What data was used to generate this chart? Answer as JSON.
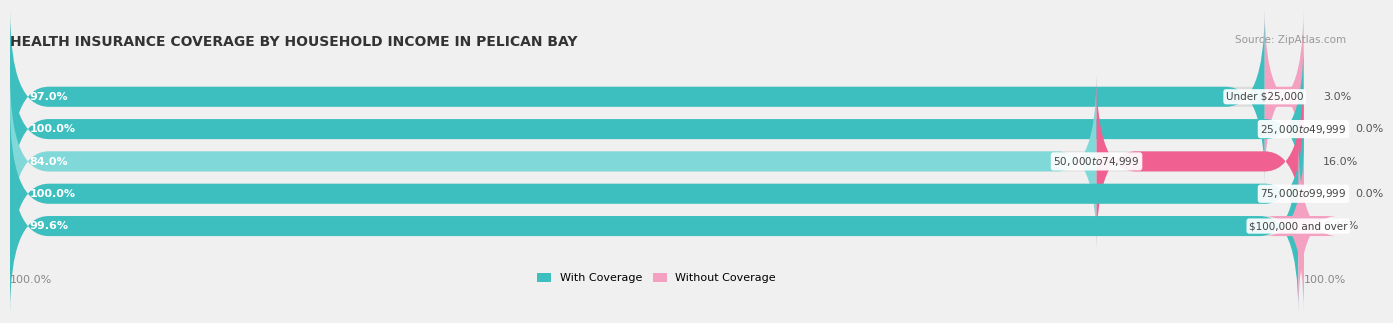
{
  "title": "HEALTH INSURANCE COVERAGE BY HOUSEHOLD INCOME IN PELICAN BAY",
  "source": "Source: ZipAtlas.com",
  "categories": [
    "Under $25,000",
    "$25,000 to $49,999",
    "$50,000 to $74,999",
    "$75,000 to $99,999",
    "$100,000 and over"
  ],
  "with_coverage": [
    97.0,
    100.0,
    84.0,
    100.0,
    99.6
  ],
  "without_coverage": [
    3.0,
    0.0,
    16.0,
    0.0,
    0.43
  ],
  "with_coverage_labels": [
    "97.0%",
    "100.0%",
    "84.0%",
    "100.0%",
    "99.6%"
  ],
  "without_coverage_labels": [
    "3.0%",
    "0.0%",
    "16.0%",
    "0.0%",
    "0.43%"
  ],
  "color_with": "#3dbfbf",
  "color_with_light": "#80d8d8",
  "color_without_light": "#f4a0c0",
  "color_without_dark": "#f06090",
  "background_color": "#f0f0f0",
  "bar_bg_color": "#dcdcdc",
  "legend_with": "With Coverage",
  "legend_without": "Without Coverage",
  "bottom_left_label": "100.0%",
  "bottom_right_label": "100.0%",
  "title_fontsize": 10,
  "label_fontsize": 8,
  "category_fontsize": 7.5,
  "source_fontsize": 7.5
}
